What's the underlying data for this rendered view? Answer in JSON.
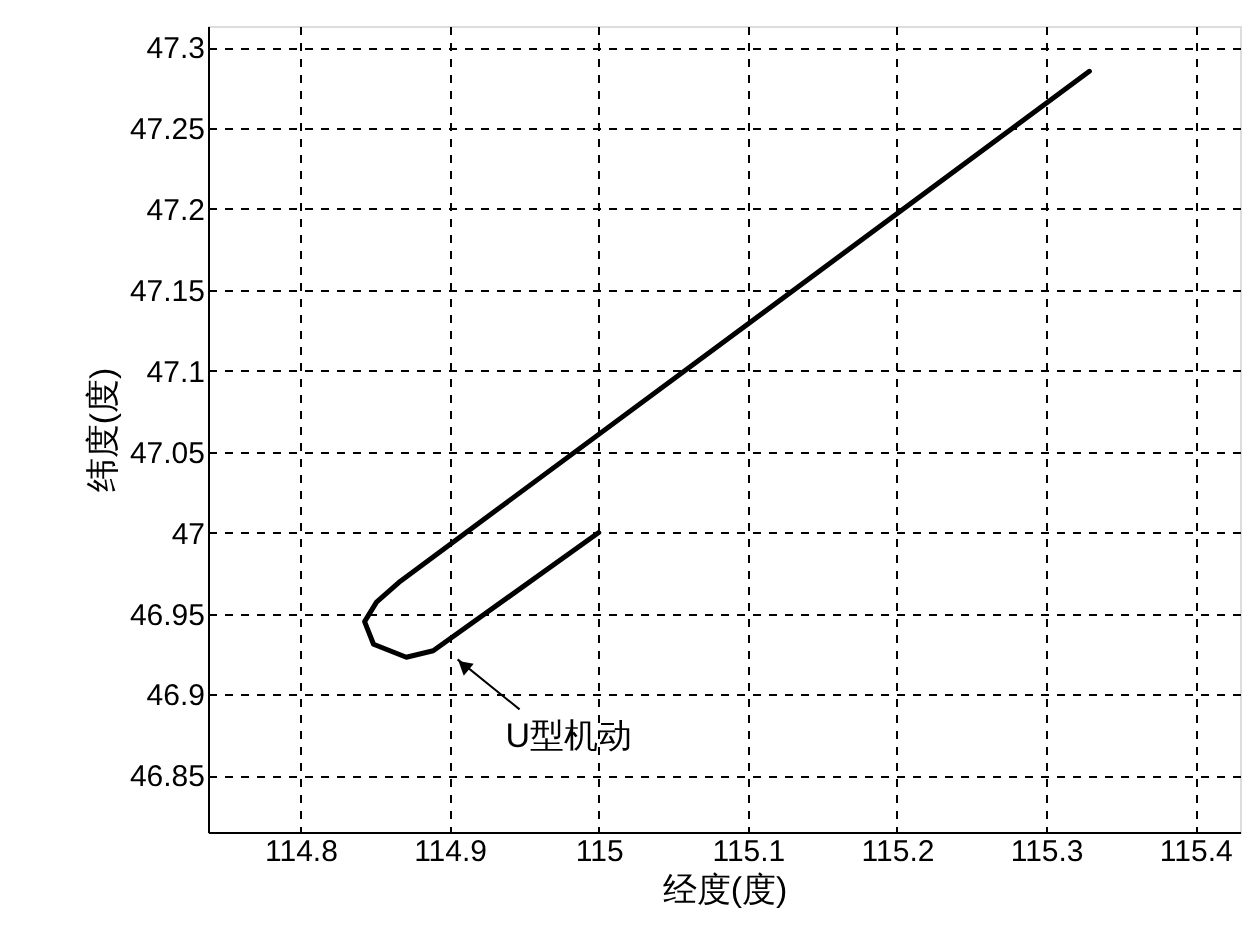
{
  "chart_data": {
    "type": "line",
    "xlabel": "经度(度)",
    "ylabel": "纬度(度)",
    "x": [
      115.0,
      114.889,
      114.871,
      114.849,
      114.843,
      114.851,
      114.867,
      115.329
    ],
    "series": [
      {
        "color": "#000000",
        "values": [
          47.0,
          46.927,
          46.923,
          46.931,
          46.945,
          46.957,
          46.97,
          47.285
        ]
      }
    ],
    "xlim": [
      114.738,
      115.43
    ],
    "xticks": [
      114.8,
      114.9,
      115,
      115.1,
      115.2,
      115.3,
      115.4
    ],
    "ylim": [
      46.815,
      47.313
    ],
    "yticks": [
      46.85,
      46.9,
      46.95,
      47,
      47.05,
      47.1,
      47.15,
      47.2,
      47.25,
      47.3
    ],
    "grid": true,
    "line_style": "solid",
    "marker": "none",
    "annotations": [
      {
        "text": "U型机动",
        "x": 114.9,
        "y": 46.934
      }
    ]
  }
}
